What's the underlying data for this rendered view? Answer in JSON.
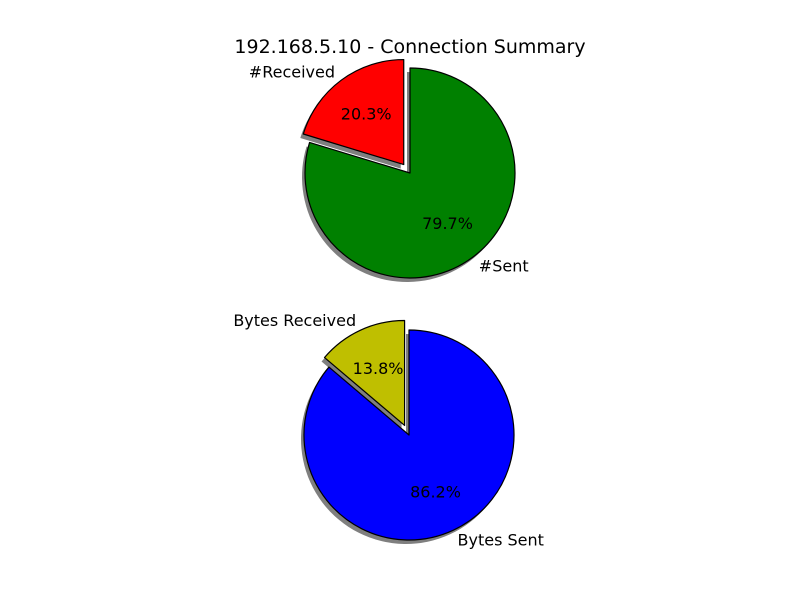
{
  "figure": {
    "title": "192.168.5.10 - Connection Summary"
  },
  "chart_data": [
    {
      "type": "pie",
      "title": "",
      "start_angle_deg": 90,
      "direction": "counterclockwise",
      "shadow": true,
      "slices": [
        {
          "label": "#Received",
          "value": 20.3,
          "pct_label": "20.3%",
          "color": "#ff0000",
          "exploded": true
        },
        {
          "label": "#Sent",
          "value": 79.7,
          "pct_label": "79.7%",
          "color": "#008000",
          "exploded": false
        }
      ]
    },
    {
      "type": "pie",
      "title": "",
      "start_angle_deg": 90,
      "direction": "counterclockwise",
      "shadow": true,
      "slices": [
        {
          "label": "Bytes Received",
          "value": 13.8,
          "pct_label": "13.8%",
          "color": "#bfbf00",
          "exploded": true
        },
        {
          "label": "Bytes Sent",
          "value": 86.2,
          "pct_label": "86.2%",
          "color": "#0000ff",
          "exploded": false
        }
      ]
    }
  ]
}
